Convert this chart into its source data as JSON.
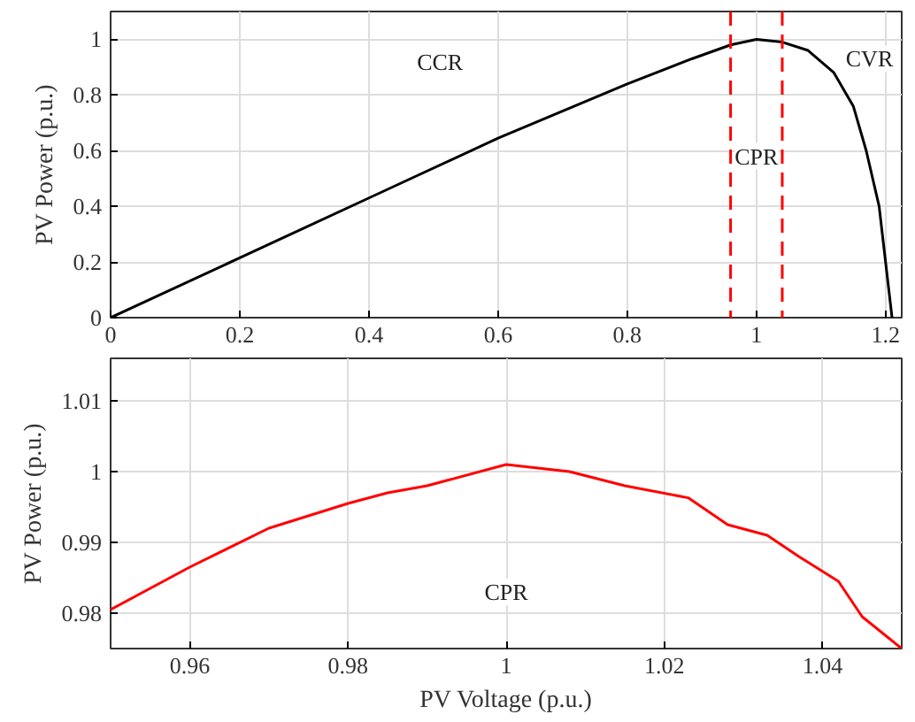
{
  "chart_data": [
    {
      "type": "line",
      "ylabel": "PV Power (p.u.)",
      "x": [
        0,
        0.2,
        0.4,
        0.6,
        0.8,
        0.9,
        0.96,
        1.0,
        1.04,
        1.08,
        1.12,
        1.15,
        1.17,
        1.19,
        1.2,
        1.21
      ],
      "series": [
        {
          "color": "#000000",
          "values": [
            0,
            0.215,
            0.43,
            0.645,
            0.84,
            0.93,
            0.98,
            1.0,
            0.99,
            0.96,
            0.88,
            0.76,
            0.6,
            0.4,
            0.2,
            0
          ]
        }
      ],
      "xlim": [
        0,
        1.225
      ],
      "xticks": [
        0,
        0.2,
        0.4,
        0.6,
        0.8,
        1,
        1.2
      ],
      "ylim": [
        0,
        1.1
      ],
      "yticks": [
        0,
        0.2,
        0.4,
        0.6,
        0.8,
        1
      ],
      "grid": true,
      "ref_lines": [
        {
          "axis": "x",
          "value": 0.96,
          "color": "#ff0000",
          "line_style": "dashed"
        },
        {
          "axis": "x",
          "value": 1.04,
          "color": "#ff0000",
          "line_style": "dashed"
        }
      ],
      "annotations": [
        {
          "text": "CCR",
          "x": 0.51,
          "y": 0.92
        },
        {
          "text": "CVR",
          "x": 1.175,
          "y": 0.93
        },
        {
          "text": "CPR",
          "x": 1.0,
          "y": 0.58
        }
      ]
    },
    {
      "type": "line",
      "xlabel": "PV Voltage (p.u.)",
      "ylabel": "PV Power (p.u.)",
      "x": [
        0.95,
        0.96,
        0.97,
        0.98,
        0.985,
        0.99,
        1.0,
        1.008,
        1.015,
        1.023,
        1.028,
        1.033,
        1.037,
        1.042,
        1.045,
        1.05
      ],
      "series": [
        {
          "color": "#ff0000",
          "values": [
            0.9805,
            0.9865,
            0.992,
            0.9955,
            0.997,
            0.998,
            1.001,
            1.0,
            0.998,
            0.9963,
            0.9925,
            0.991,
            0.988,
            0.9845,
            0.9795,
            0.975
          ]
        }
      ],
      "xlim": [
        0.95,
        1.05
      ],
      "xticks": [
        0.96,
        0.98,
        1,
        1.02,
        1.04
      ],
      "ylim": [
        0.975,
        1.016
      ],
      "yticks": [
        0.98,
        0.99,
        1,
        1.01
      ],
      "grid": true,
      "annotations": [
        {
          "text": "CPR",
          "x": 1.0,
          "y": 0.983
        }
      ]
    }
  ]
}
